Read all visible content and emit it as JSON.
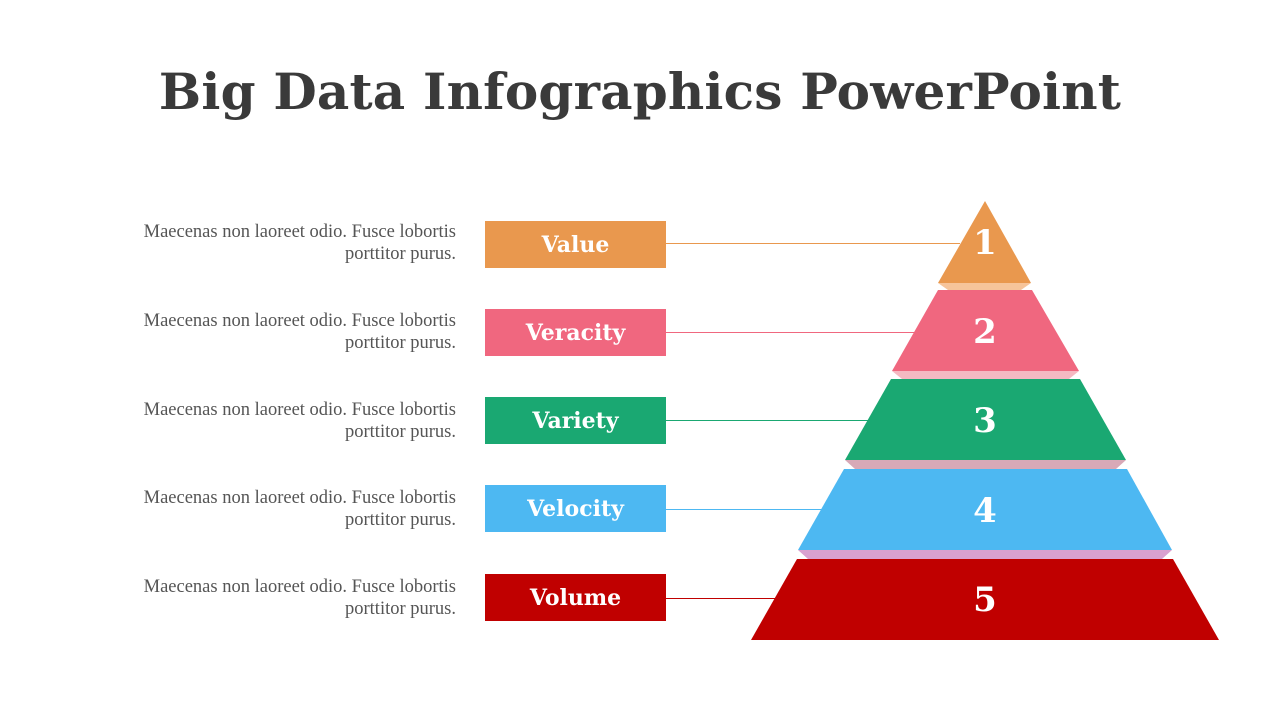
{
  "title": "Big Data Infographics PowerPoint",
  "levels": [
    {
      "number": "1",
      "label": "Value",
      "color": "#E9984E",
      "connector_color": "#E9984E",
      "desc_line1": "Maecenas non laoreet odio. Fusce lobortis",
      "desc_line2": "porttitor purus."
    },
    {
      "number": "2",
      "label": "Veracity",
      "color": "#F0677F",
      "connector_color": "#F0677F",
      "desc_line1": "Maecenas non laoreet odio. Fusce lobortis",
      "desc_line2": "porttitor purus."
    },
    {
      "number": "3",
      "label": "Variety",
      "color": "#1AA872",
      "connector_color": "#1AA872",
      "desc_line1": "Maecenas non laoreet odio. Fusce lobortis",
      "desc_line2": "porttitor purus."
    },
    {
      "number": "4",
      "label": "Velocity",
      "color": "#4DB8F2",
      "connector_color": "#4DB8F2",
      "desc_line1": "Maecenas non laoreet odio. Fusce lobortis",
      "desc_line2": "porttitor purus."
    },
    {
      "number": "5",
      "label": "Volume",
      "color": "#C00000",
      "connector_color": "#C00000",
      "desc_line1": "Maecenas non laoreet odio. Fusce lobortis",
      "desc_line2": "porttitor purus."
    }
  ],
  "separator_colors": [
    "#F6C49A",
    "#F5B9C2",
    "#D8A9B7",
    "#D9A1D0"
  ]
}
